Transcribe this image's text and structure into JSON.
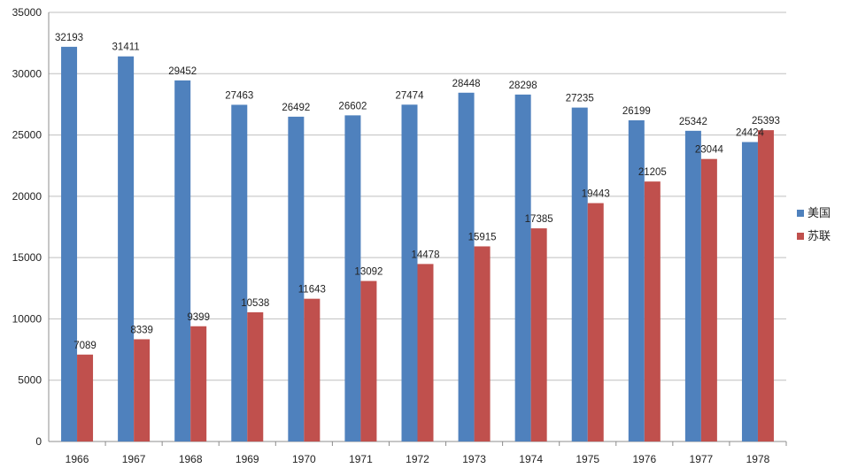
{
  "chart_data": {
    "type": "bar",
    "categories": [
      "1966",
      "1967",
      "1968",
      "1969",
      "1970",
      "1971",
      "1972",
      "1973",
      "1974",
      "1975",
      "1976",
      "1977",
      "1978"
    ],
    "series": [
      {
        "name": "美国",
        "color": "#4F81BD",
        "values": [
          32193,
          31411,
          29452,
          27463,
          26492,
          26602,
          27474,
          28448,
          28298,
          27235,
          26199,
          25342,
          24424
        ]
      },
      {
        "name": "苏联",
        "color": "#C0504D",
        "values": [
          7089,
          8339,
          9399,
          10538,
          11643,
          13092,
          14478,
          15915,
          17385,
          19443,
          21205,
          23044,
          25393
        ]
      }
    ],
    "ylim": [
      0,
      35000
    ],
    "yticks": [
      0,
      5000,
      10000,
      15000,
      20000,
      25000,
      30000,
      35000
    ],
    "title": "",
    "xlabel": "",
    "ylabel": "",
    "grid": true,
    "legend_position": "right"
  }
}
